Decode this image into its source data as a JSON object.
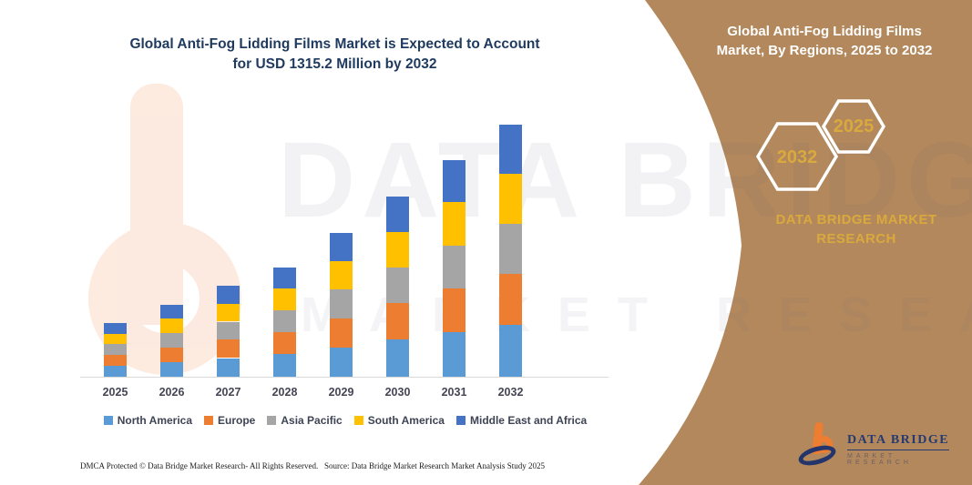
{
  "left": {
    "title_line1": "Global Anti-Fog Lidding Films Market is Expected to Account",
    "title_line2": "for USD 1315.2 Million by 2032",
    "footer_dmca": "DMCA Protected © Data Bridge Market Research-  All Rights Reserved.",
    "footer_source": "Source: Data Bridge Market Research  Market Analysis Study 2025"
  },
  "right_panel": {
    "title_line1": "Global Anti-Fog Lidding Films",
    "title_line2": "Market, By Regions, 2025 to 2032",
    "hexagons": [
      {
        "label": "2032"
      },
      {
        "label": "2025"
      }
    ],
    "brand_text": "DATA BRIDGE MARKET RESEARCH",
    "logo_name": "DATA BRIDGE",
    "logo_subtitle": "MARKET RESEARCH",
    "colors": {
      "background": "#b3885c",
      "accent_gold": "#d9a93e",
      "hexagon_border": "#ffffff"
    }
  },
  "watermark": {
    "line1": "DATA BRIDGE",
    "line2": "MARKET RESEARCH"
  },
  "chart_data": {
    "type": "bar",
    "stacked": true,
    "title": "Global Anti-Fog Lidding Films Market is Expected to Account for USD 1315.2 Million by 2032",
    "unit": "USD Million",
    "categories": [
      "2025",
      "2026",
      "2027",
      "2028",
      "2029",
      "2030",
      "2031",
      "2032"
    ],
    "series": [
      {
        "name": "North America",
        "color": "#5b9bd5",
        "values": [
          57.4,
          76.9,
          97.0,
          117.1,
          154.0,
          192.5,
          231.4,
          269.6
        ]
      },
      {
        "name": "Europe",
        "color": "#ed7d31",
        "values": [
          56.6,
          75.8,
          95.5,
          115.3,
          151.7,
          189.7,
          228.1,
          265.7
        ]
      },
      {
        "name": "Asia Pacific",
        "color": "#a5a5a5",
        "values": [
          55.7,
          74.6,
          94.1,
          113.6,
          149.4,
          186.9,
          224.7,
          261.7
        ]
      },
      {
        "name": "South America",
        "color": "#ffc000",
        "values": [
          55.7,
          74.6,
          94.1,
          113.6,
          149.4,
          186.9,
          224.7,
          261.7
        ]
      },
      {
        "name": "Middle East and Africa",
        "color": "#4472c4",
        "values": [
          54.6,
          73.1,
          92.2,
          111.3,
          146.4,
          183.1,
          220.2,
          256.5
        ]
      }
    ],
    "totals": [
      280,
      375,
      473,
      571,
      751,
      939,
      1129,
      1315.2
    ],
    "ylim": [
      0,
      1350
    ],
    "y_axis_visible": false,
    "gridlines": false,
    "legend_position": "bottom"
  }
}
